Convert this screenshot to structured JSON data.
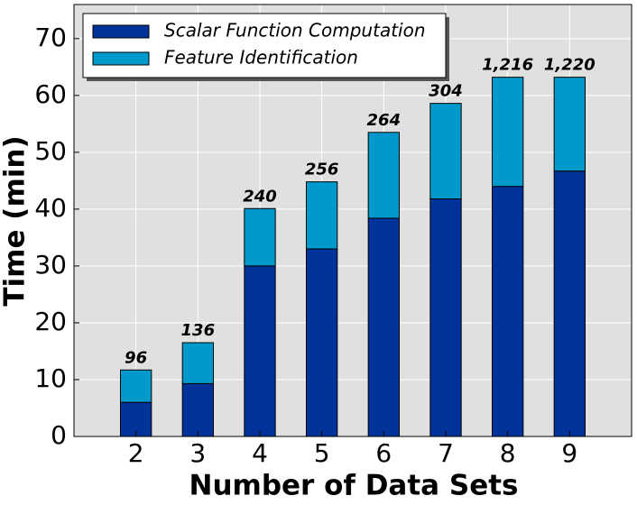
{
  "chart_data": {
    "type": "stacked-bar",
    "x_label": "Number of Data Sets",
    "y_label": "Time (min)",
    "x": [
      2,
      3,
      4,
      5,
      6,
      7,
      8,
      9
    ],
    "series": [
      {
        "name": "Scalar Function Computation",
        "color": "#003399",
        "values": [
          6,
          9.3,
          30,
          33,
          38.4,
          41.8,
          44,
          46.7
        ]
      },
      {
        "name": "Feature Identification",
        "color": "#0099cc",
        "values": [
          5.7,
          7.2,
          10.1,
          11.8,
          15.1,
          16.8,
          19.2,
          16.5
        ]
      }
    ],
    "annotations": [
      "96",
      "136",
      "240",
      "256",
      "264",
      "304",
      "1,216",
      "1,220"
    ],
    "xlim": [
      1,
      10
    ],
    "xticks": [
      2,
      3,
      4,
      5,
      6,
      7,
      8,
      9
    ],
    "ylim": [
      0,
      76
    ],
    "yticks": [
      0,
      10,
      20,
      30,
      40,
      50,
      60,
      70
    ],
    "grid": true,
    "legend": "upper-left"
  }
}
